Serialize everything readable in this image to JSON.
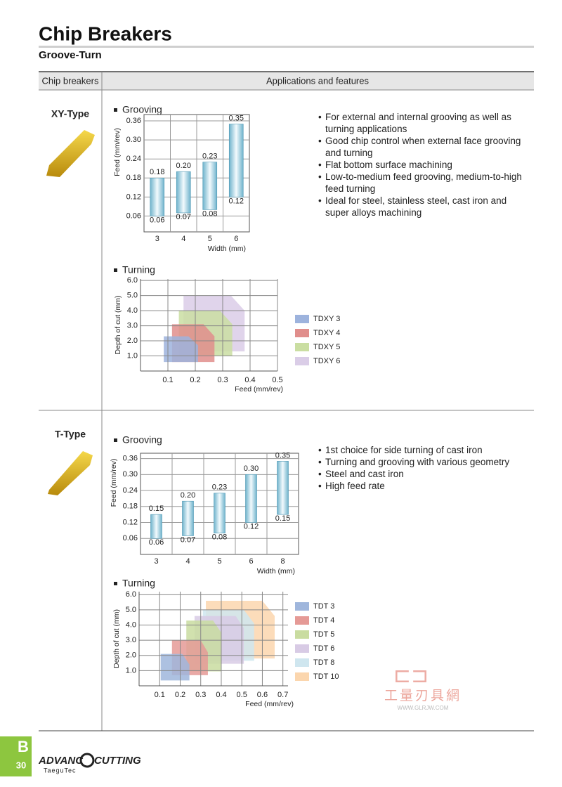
{
  "header": {
    "title": "Chip Breakers",
    "subtitle": "Groove-Turn"
  },
  "table": {
    "columns": [
      "Chip breakers",
      "Applications and features"
    ]
  },
  "sections": [
    {
      "name": "XY-Type",
      "features": [
        "For external and internal grooving as well as turning applications",
        "Good chip control when external face grooving and turning",
        "Flat bottom surface machining",
        "Low-to-medium feed grooving, medium-to-high feed turning",
        "Ideal for steel, stainless steel, cast iron and super alloys machining"
      ],
      "grooving": {
        "type": "range-bar",
        "title": "Grooving",
        "y_label": "Feed (mm/rev)",
        "x_label": "Width (mm)",
        "categories": [
          "3",
          "4",
          "5",
          "6"
        ],
        "min": [
          0.06,
          0.07,
          0.08,
          0.12
        ],
        "max": [
          0.18,
          0.2,
          0.23,
          0.35
        ],
        "min_labels": [
          "0.06",
          "0.07",
          "0.08",
          "0.12"
        ],
        "max_labels": [
          "0.18",
          "0.20",
          "0.23",
          "0.35"
        ],
        "ylim": [
          0.01,
          0.38
        ],
        "yticks": [
          0.06,
          0.12,
          0.18,
          0.24,
          {
            "value": 0.3,
            "label": "0.30"
          },
          0.36
        ],
        "color": "#6fb3cc"
      },
      "turning": {
        "type": "area",
        "title": "Turning",
        "x_label": "Feed (mm/rev)",
        "y_label": "Depth of cut (mm)",
        "xlim": [
          0,
          0.5
        ],
        "xticks": [
          0.1,
          0.2,
          0.3,
          0.4,
          0.5
        ],
        "ylim": [
          0,
          6.1
        ],
        "yticks": [
          {
            "value": 1,
            "label": "1.0"
          },
          {
            "value": 2,
            "label": "2.0"
          },
          {
            "value": 3,
            "label": "3.0"
          },
          {
            "value": 4,
            "label": "4.0"
          },
          {
            "value": 5,
            "label": "5.0"
          },
          {
            "value": 6,
            "label": "6.0"
          }
        ],
        "series": [
          {
            "name": "TDXY 3",
            "color": "#9db3dd",
            "feed": [
              0.085,
              0.21,
              0.21,
              0.175,
              0.085
            ],
            "doc": [
              0.6,
              0.6,
              1.7,
              2.3,
              2.3
            ]
          },
          {
            "name": "TDXY 4",
            "color": "#e08e8c",
            "feed": [
              0.115,
              0.27,
              0.27,
              0.23,
              0.115
            ],
            "doc": [
              0.6,
              0.6,
              2.3,
              3.1,
              3.1
            ]
          },
          {
            "name": "TDXY 5",
            "color": "#cadea2",
            "feed": [
              0.14,
              0.335,
              0.335,
              0.29,
              0.14
            ],
            "doc": [
              1.0,
              1.0,
              3.1,
              4.0,
              4.0
            ]
          },
          {
            "name": "TDXY 6",
            "color": "#dacde7",
            "feed": [
              0.157,
              0.38,
              0.38,
              0.33,
              0.157
            ],
            "doc": [
              1.3,
              1.3,
              4.0,
              5.0,
              5.0
            ]
          }
        ]
      }
    },
    {
      "name": "T-Type",
      "features": [
        "1st choice for side turning of cast iron",
        "Turning and grooving with various geometry",
        "Steel and cast iron",
        "High feed rate"
      ],
      "grooving": {
        "type": "range-bar",
        "title": "Grooving",
        "y_label": "Feed (mm/rev)",
        "x_label": "Width (mm)",
        "categories": [
          "3",
          "4",
          "5",
          "6",
          "8"
        ],
        "min": [
          0.06,
          0.07,
          0.08,
          0.12,
          0.15
        ],
        "max": [
          0.15,
          0.2,
          0.23,
          0.3,
          0.35
        ],
        "min_labels": [
          "0.06",
          "0.07",
          "0.08",
          "0.12",
          "0.15"
        ],
        "max_labels": [
          "0.15",
          "0.20",
          "0.23",
          "0.30",
          "0.35"
        ],
        "ylim": [
          0,
          0.38
        ],
        "yticks": [
          0.06,
          0.12,
          0.18,
          0.24,
          {
            "value": 0.3,
            "label": "0.30"
          },
          0.36
        ],
        "color": "#6fb3cc"
      },
      "turning": {
        "type": "area",
        "title": "Turning",
        "x_label": "Feed (mm/rev)",
        "y_label": "Depth of cut (mm)",
        "xlim": [
          0,
          0.725
        ],
        "xticks": [
          0.1,
          0.2,
          0.3,
          0.4,
          0.5,
          0.6,
          0.7
        ],
        "ylim": [
          0,
          6.2
        ],
        "yticks": [
          {
            "value": 1,
            "label": "1.0"
          },
          {
            "value": 2,
            "label": "2.0"
          },
          {
            "value": 3,
            "label": "3.0"
          },
          {
            "value": 4,
            "label": "4.0"
          },
          {
            "value": 5,
            "label": "5.0"
          },
          {
            "value": 6,
            "label": "6.0"
          }
        ],
        "series": [
          {
            "name": "TDT 3",
            "color": "#9fb6dc",
            "feed": [
              0.105,
              0.245,
              0.245,
              0.21,
              0.105
            ],
            "doc": [
              0.35,
              0.35,
              1.4,
              2.1,
              2.1
            ]
          },
          {
            "name": "TDT 4",
            "color": "#e59a96",
            "feed": [
              0.16,
              0.335,
              0.335,
              0.3,
              0.16
            ],
            "doc": [
              0.7,
              0.7,
              2.2,
              3.0,
              3.0
            ]
          },
          {
            "name": "TDT 5",
            "color": "#c9dca0",
            "feed": [
              0.23,
              0.4,
              0.4,
              0.36,
              0.23
            ],
            "doc": [
              0.95,
              0.95,
              3.5,
              4.3,
              4.3
            ]
          },
          {
            "name": "TDT 6",
            "color": "#d8cbe5",
            "feed": [
              0.27,
              0.51,
              0.51,
              0.47,
              0.27
            ],
            "doc": [
              1.45,
              1.45,
              3.8,
              4.6,
              4.6
            ]
          },
          {
            "name": "TDT 8",
            "color": "#cfe6ef",
            "feed": [
              0.31,
              0.56,
              0.56,
              0.51,
              0.31
            ],
            "doc": [
              1.65,
              1.65,
              4.1,
              5.0,
              5.0
            ]
          },
          {
            "name": "TDT 10",
            "color": "#fbd6ae",
            "feed": [
              0.325,
              0.66,
              0.66,
              0.6,
              0.325
            ],
            "doc": [
              1.8,
              1.8,
              4.6,
              5.6,
              5.6
            ]
          }
        ]
      }
    }
  ],
  "watermark": {
    "text": "工量刃具網",
    "url": "WWW.GLRJW.COM"
  },
  "footer": {
    "tab_letter": "B",
    "page": "30",
    "brand_left": "ADVANC",
    "brand_right": "CUTTING",
    "maker": "TaeguTec"
  }
}
